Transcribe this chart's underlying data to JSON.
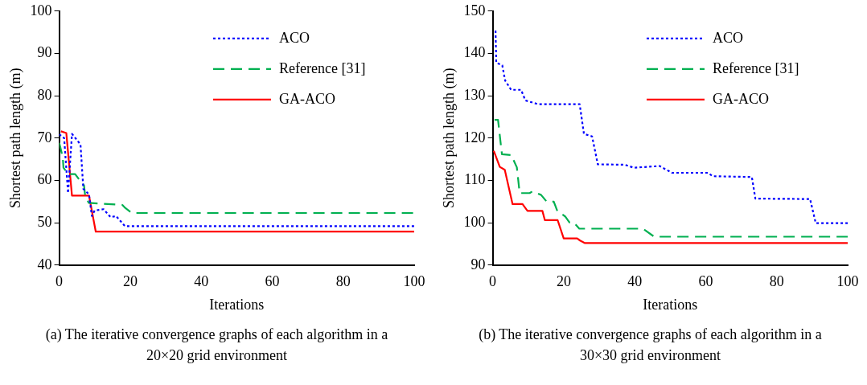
{
  "chart_data": [
    {
      "type": "line",
      "xlabel": "Iterations",
      "ylabel": "Shortest path length (m)",
      "xlim": [
        0,
        100
      ],
      "xticks": [
        0,
        20,
        40,
        60,
        80,
        100
      ],
      "ylim": [
        40,
        100
      ],
      "yticks": [
        40,
        50,
        60,
        70,
        80,
        90,
        100
      ],
      "grid": false,
      "legend": "top right",
      "marker": "none",
      "annotations": [
        "(a) The iterative convergence graphs of each algorithm in a 20×20 grid environment"
      ],
      "series": [
        {
          "name": "ACO",
          "color": "#0000ff",
          "line_style": "dotted",
          "x": [
            0,
            1.4,
            2.5,
            3.6,
            6,
            6.8,
            8.4,
            9.2,
            10,
            12.5,
            14.5,
            16,
            18.5,
            100
          ],
          "values": [
            70.9,
            70,
            57,
            71,
            68.5,
            58,
            56.7,
            51.6,
            52.9,
            53.2,
            51.3,
            51.6,
            49.2,
            49.2
          ]
        },
        {
          "name": "Reference [31]",
          "color": "#00b050",
          "line_style": "dashed",
          "x": [
            0,
            1,
            1.2,
            2.5,
            4.5,
            6,
            7,
            7.3,
            8.3,
            17.8,
            18.6,
            20.5,
            100
          ],
          "values": [
            68.9,
            65.5,
            63,
            61.5,
            61.5,
            59.8,
            58.8,
            56.5,
            54.7,
            54.2,
            53.5,
            52.3,
            52.3
          ]
        },
        {
          "name": "GA-ACO",
          "color": "#ff0000",
          "line_style": "solid",
          "x": [
            0.5,
            2,
            3.6,
            8.4,
            10.3,
            100
          ],
          "values": [
            71.6,
            71.2,
            56.4,
            56.4,
            47.9,
            47.9
          ]
        }
      ]
    },
    {
      "type": "line",
      "xlabel": "Iterations",
      "ylabel": "Shortest path length (m)",
      "xlim": [
        0,
        100
      ],
      "xticks": [
        0,
        20,
        40,
        60,
        80,
        100
      ],
      "ylim": [
        90,
        150
      ],
      "yticks": [
        90,
        100,
        110,
        120,
        130,
        140,
        150
      ],
      "grid": false,
      "legend": "top right",
      "marker": "none",
      "annotations": [
        "(b) The iterative convergence graphs of each algorithm in a 30×30 grid environment"
      ],
      "series": [
        {
          "name": "ACO",
          "color": "#0000ff",
          "line_style": "dotted",
          "x": [
            0.8,
            1,
            2.7,
            3.5,
            5.2,
            8,
            9.2,
            12.8,
            24.5,
            25.7,
            28,
            29.6,
            37.3,
            39.7,
            47,
            50.5,
            60.6,
            62,
            73,
            74,
            89.4,
            91,
            100
          ],
          "values": [
            145.4,
            137.8,
            137.2,
            133.6,
            131.4,
            131.4,
            128.9,
            128,
            128,
            121,
            120.4,
            113.8,
            113.7,
            113,
            113.4,
            111.8,
            111.8,
            111,
            110.8,
            105.7,
            105.6,
            99.9,
            99.9
          ]
        },
        {
          "name": "Reference [31]",
          "color": "#00b050",
          "line_style": "dashed",
          "x": [
            0.5,
            1.5,
            2.6,
            5.2,
            6.8,
            7.6,
            10.4,
            11.2,
            13.6,
            15.2,
            17.2,
            18.2,
            20.4,
            21.6,
            22.8,
            24.4,
            42.3,
            45.5,
            100
          ],
          "values": [
            124.3,
            124.3,
            116.2,
            116,
            113.1,
            107,
            107,
            107.4,
            106.6,
            105,
            105,
            102.8,
            101.5,
            100.1,
            100.1,
            98.6,
            98.6,
            96.7,
            96.7
          ]
        },
        {
          "name": "GA-ACO",
          "color": "#ff0000",
          "line_style": "solid",
          "x": [
            0.3,
            2,
            3.4,
            5.6,
            8.4,
            9.8,
            14,
            14.7,
            18.3,
            20,
            23.8,
            24.6,
            26,
            100
          ],
          "values": [
            117,
            113.2,
            112.5,
            104.4,
            104.4,
            102.8,
            102.8,
            100.6,
            100.6,
            96.3,
            96.3,
            95.8,
            95.2,
            95.2
          ]
        }
      ]
    }
  ]
}
